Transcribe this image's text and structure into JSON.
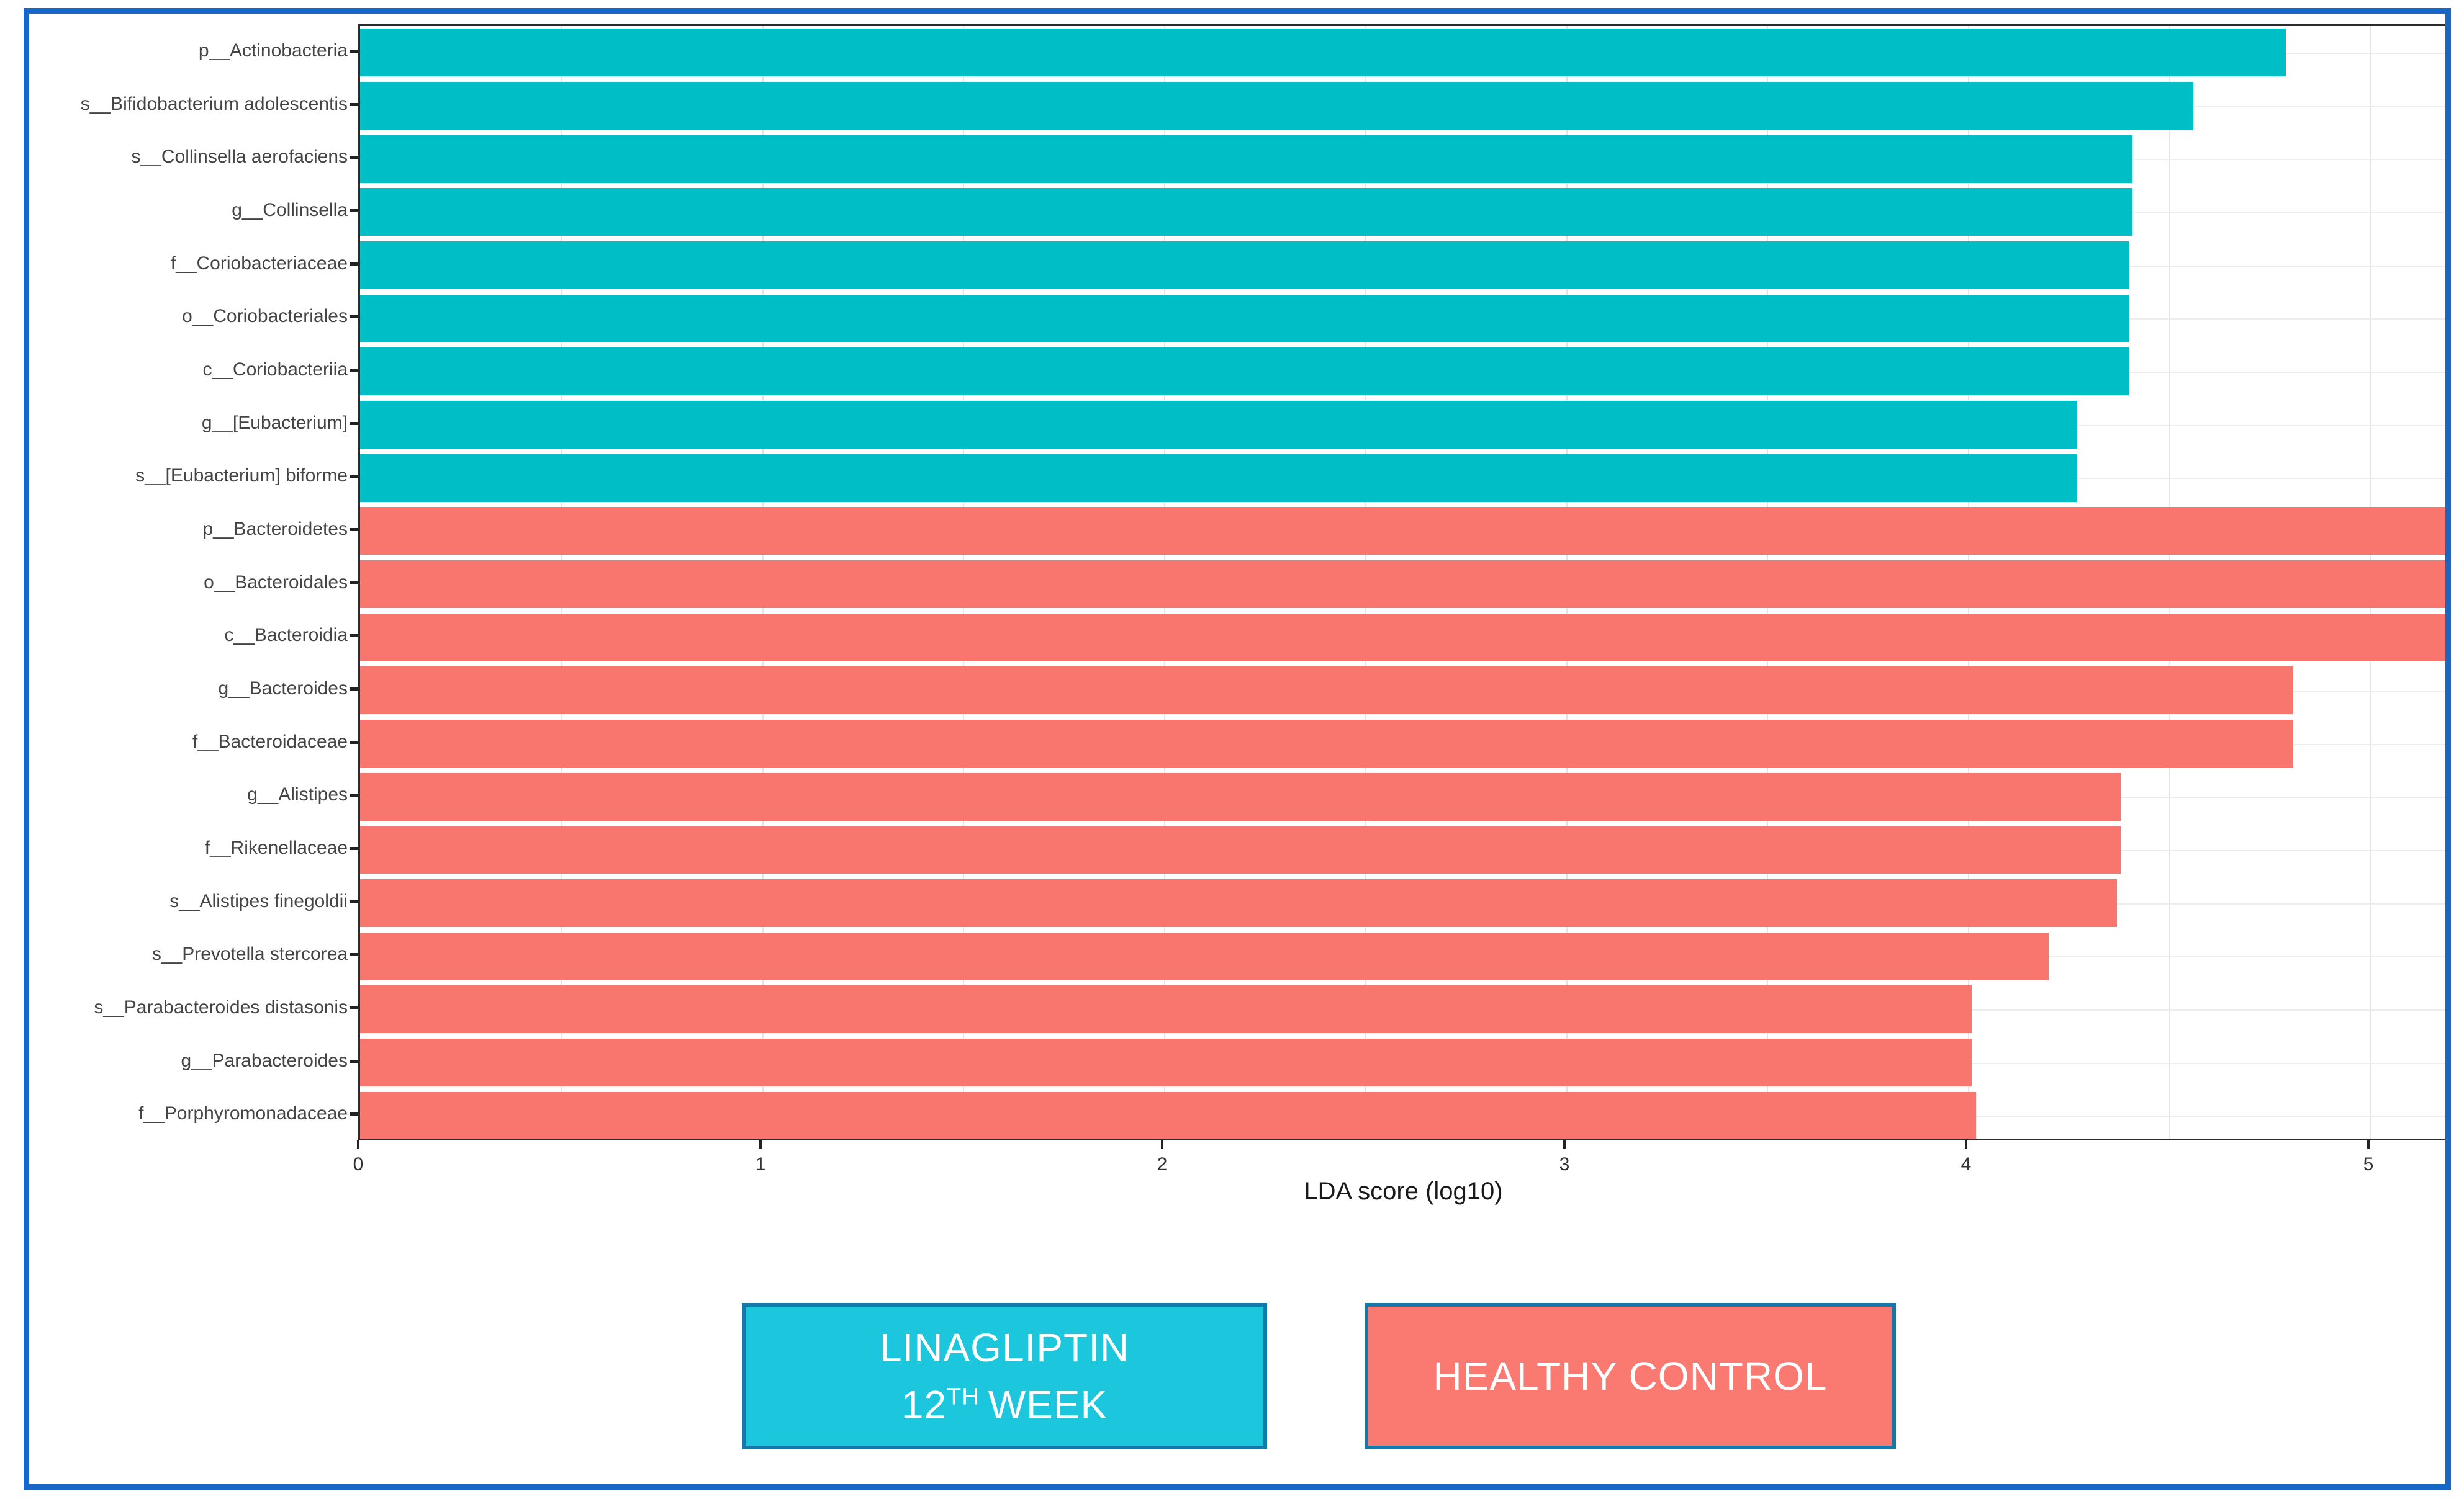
{
  "figure": {
    "frame_color": "#1667c8",
    "background_color": "#ffffff",
    "panel_border_color": "#2b2b2b",
    "gridline_color": "#e4e4e4"
  },
  "chart_data": {
    "type": "bar",
    "orientation": "horizontal",
    "title": "",
    "xlabel": "LDA score (log10)",
    "ylabel": "",
    "xlim": [
      0,
      5.2
    ],
    "x_ticks": [
      0,
      1,
      2,
      3,
      4,
      5
    ],
    "grid": "vertical lines every 0.5 units; light horizontal line at each category center",
    "legend_position": "bottom",
    "bar_colors": {
      "linagliptin": "#00bec6",
      "healthy": "#f8766d"
    },
    "categories": [
      "p__Actinobacteria",
      "s__Bifidobacterium adolescentis",
      "s__Collinsella aerofaciens",
      "g__Collinsella",
      "f__Coriobacteriaceae",
      "o__Coriobacteriales",
      "c__Coriobacteriia",
      "g__[Eubacterium]",
      "s__[Eubacterium] biforme",
      "p__Bacteroidetes",
      "o__Bacteroidales",
      "c__Bacteroidia",
      "g__Bacteroides",
      "f__Bacteroidaceae",
      "g__Alistipes",
      "f__Rikenellaceae",
      "s__Alistipes finegoldii",
      "s__Prevotella stercorea",
      "s__Parabacteroides distasonis",
      "g__Parabacteroides",
      "f__Porphyromonadaceae"
    ],
    "values": [
      4.79,
      4.56,
      4.41,
      4.41,
      4.4,
      4.4,
      4.4,
      4.27,
      4.27,
      5.2,
      5.2,
      5.2,
      4.81,
      4.81,
      4.38,
      4.38,
      4.37,
      4.2,
      4.01,
      4.01,
      4.02
    ],
    "groups": [
      "linagliptin",
      "linagliptin",
      "linagliptin",
      "linagliptin",
      "linagliptin",
      "linagliptin",
      "linagliptin",
      "linagliptin",
      "linagliptin",
      "healthy",
      "healthy",
      "healthy",
      "healthy",
      "healthy",
      "healthy",
      "healthy",
      "healthy",
      "healthy",
      "healthy",
      "healthy",
      "healthy"
    ],
    "clipped_at_xmax": [
      "p__Bacteroidetes",
      "o__Bacteroidales",
      "c__Bacteroidia"
    ]
  },
  "legend": {
    "linagliptin": {
      "line1": "LINAGLIPTIN",
      "line2_num": "12",
      "line2_sup": "TH",
      "line2_rest": "WEEK",
      "fill": "#1cc7dd",
      "border": "#1478a8"
    },
    "healthy": {
      "label": "HEALTHY CONTROL",
      "fill": "#fa7a72",
      "border": "#1478a8"
    }
  }
}
